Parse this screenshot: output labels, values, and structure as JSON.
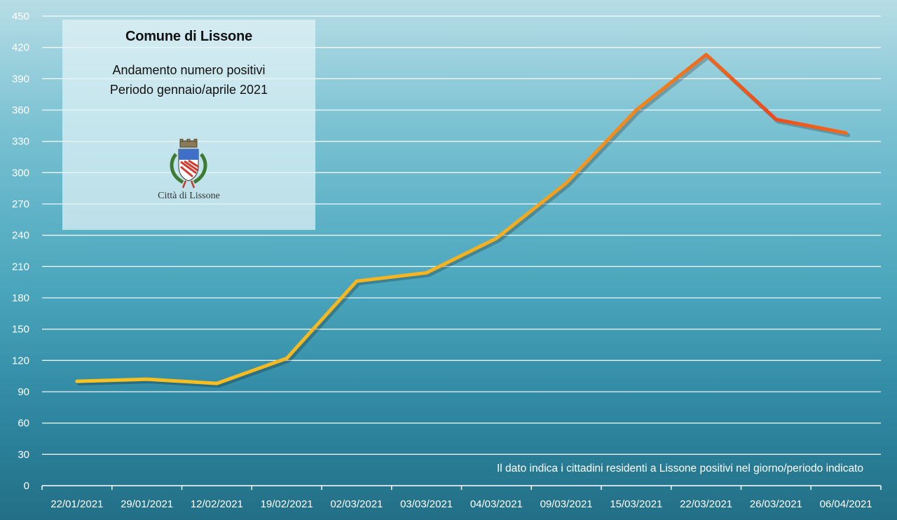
{
  "chart_data": {
    "type": "line",
    "categories": [
      "22/01/2021",
      "29/01/2021",
      "12/02/2021",
      "19/02/2021",
      "02/03/2021",
      "03/03/2021",
      "04/03/2021",
      "09/03/2021",
      "15/03/2021",
      "22/03/2021",
      "26/03/2021",
      "06/04/2021"
    ],
    "series": [
      {
        "values": [
          100,
          102,
          98,
          122,
          196,
          204,
          237,
          290,
          360,
          413,
          351,
          338
        ]
      }
    ],
    "ylim": [
      0,
      450
    ],
    "yticks": [
      "0",
      "30",
      "60",
      "90",
      "120",
      "150",
      "180",
      "210",
      "240",
      "270",
      "300",
      "330",
      "360",
      "390",
      "420",
      "450"
    ],
    "grid": true,
    "line_gradient": [
      "#f7c320",
      "#f39a1d",
      "#f04a1a"
    ],
    "annotation": "Il dato indica i cittadini residenti a Lissone positivi nel giorno/periodo indicato"
  },
  "info_box": {
    "title": "Comune di Lissone",
    "subtitle_line1": "Andamento numero positivi",
    "subtitle_line2": "Periodo gennaio/aprile 2021",
    "logo_text": "Città di Lissone",
    "logo_icon": "city-crest-icon"
  },
  "colors": {
    "background_top": "#b7dde6",
    "background_bottom": "#226f86",
    "gridline": "#ffffff",
    "text": "#ffffff"
  }
}
